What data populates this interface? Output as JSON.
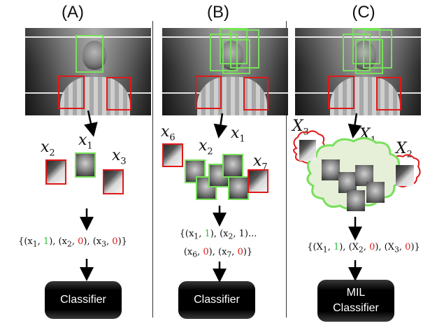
{
  "panels": [
    {
      "label": "(A)",
      "instances": [
        "x",
        "x",
        "x"
      ],
      "instance_subs": [
        "2",
        "1",
        "3"
      ],
      "formula_lines": [
        [
          {
            "t": "{(x"
          },
          {
            "s": "1"
          },
          {
            "t": ", "
          },
          {
            "c": "one",
            "t": "1"
          },
          {
            "t": "), (x"
          },
          {
            "s": "2"
          },
          {
            "t": ", "
          },
          {
            "c": "zero",
            "t": "0"
          },
          {
            "t": "), (x"
          },
          {
            "s": "3"
          },
          {
            "t": ", "
          },
          {
            "c": "zero",
            "t": "0"
          },
          {
            "t": ")}"
          }
        ]
      ],
      "classifier_lines": [
        "Classifier"
      ]
    },
    {
      "label": "(B)",
      "instances": [
        "x",
        "x",
        "x",
        "x"
      ],
      "instance_subs": [
        "6",
        "2",
        "1",
        "7"
      ],
      "formula_lines": [
        [
          {
            "t": "{(x"
          },
          {
            "s": "1"
          },
          {
            "t": ", "
          },
          {
            "c": "one",
            "t": "1"
          },
          {
            "t": "), (x"
          },
          {
            "s": "2"
          },
          {
            "t": ", 1)..."
          }
        ],
        [
          {
            "t": "(x"
          },
          {
            "s": "6"
          },
          {
            "t": ", "
          },
          {
            "c": "zero",
            "t": "0"
          },
          {
            "t": "), (x"
          },
          {
            "s": "7"
          },
          {
            "t": ", "
          },
          {
            "c": "zero",
            "t": "0"
          },
          {
            "t": ")}"
          }
        ]
      ],
      "classifier_lines": [
        "Classifier"
      ]
    },
    {
      "label": "(C)",
      "instances": [
        "X",
        "X",
        "X"
      ],
      "instance_subs": [
        "3",
        "1",
        "2"
      ],
      "formula_lines": [
        [
          {
            "t": "{(X"
          },
          {
            "s": "1"
          },
          {
            "t": ", "
          },
          {
            "c": "one",
            "t": "1"
          },
          {
            "t": "), (X"
          },
          {
            "s": "2"
          },
          {
            "t": ", "
          },
          {
            "c": "zero",
            "t": "0"
          },
          {
            "t": "), (X"
          },
          {
            "s": "3"
          },
          {
            "t": ", "
          },
          {
            "c": "zero",
            "t": "0"
          },
          {
            "t": ")}"
          }
        ]
      ],
      "classifier_lines": [
        "MIL",
        "Classifier"
      ]
    }
  ],
  "colors": {
    "positive": "#77e05a",
    "negative": "#e01818",
    "label_one": "#2fbf3a",
    "label_zero": "#e01818"
  }
}
